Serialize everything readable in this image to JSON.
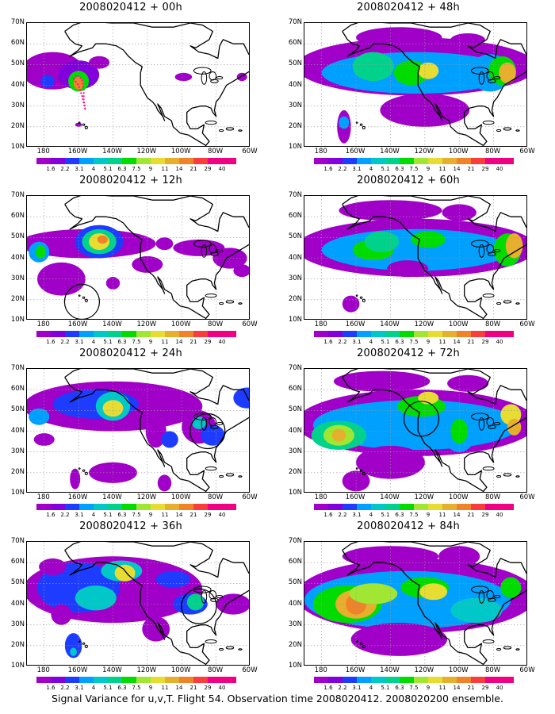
{
  "figure": {
    "caption": "Signal Variance for u,v,T. Flight 54. Observation time 2008020412. 2008020200 ensemble.",
    "y_ticks": [
      "70N",
      "60N",
      "50N",
      "40N",
      "30N",
      "20N",
      "10N"
    ],
    "x_ticks": [
      "180",
      "160W",
      "140W",
      "120W",
      "100W",
      "80W",
      "60W"
    ],
    "colorbar": {
      "labels": [
        "1.6",
        "2.2",
        "3.1",
        "4",
        "5.1",
        "6.3",
        "7.5",
        "9",
        "11",
        "14",
        "21",
        "29",
        "40"
      ],
      "colors": [
        "#a000c8",
        "#8200dc",
        "#1e3cff",
        "#00a0ff",
        "#00c8c8",
        "#00d28c",
        "#00dc00",
        "#a0e632",
        "#e6dc32",
        "#e6af2d",
        "#f08228",
        "#fa3c3c",
        "#f00082"
      ]
    },
    "panels": [
      {
        "id": "p00",
        "title": "2008020412 + 00h",
        "col": 0,
        "row": 0,
        "circle": null,
        "track": true
      },
      {
        "id": "p12",
        "title": "2008020412 + 12h",
        "col": 0,
        "row": 1,
        "circle": {
          "lon": -158,
          "lat": 19
        },
        "track": false
      },
      {
        "id": "p24",
        "title": "2008020412 + 24h",
        "col": 0,
        "row": 2,
        "circle": {
          "lon": -85,
          "lat": 40
        },
        "track": false
      },
      {
        "id": "p36",
        "title": "2008020412 + 36h",
        "col": 0,
        "row": 3,
        "circle": {
          "lon": -90,
          "lat": 39
        },
        "track": false
      },
      {
        "id": "p48",
        "title": "2008020412 + 48h",
        "col": 1,
        "row": 0,
        "circle": null,
        "track": false
      },
      {
        "id": "p60",
        "title": "2008020412 + 60h",
        "col": 1,
        "row": 1,
        "circle": null,
        "track": false
      },
      {
        "id": "p72",
        "title": "2008020412 + 72h",
        "col": 1,
        "row": 2,
        "circle": {
          "lon": -122,
          "lat": 46
        },
        "track": false
      },
      {
        "id": "p84",
        "title": "2008020412 + 84h",
        "col": 1,
        "row": 3,
        "circle": null,
        "track": false
      }
    ]
  }
}
